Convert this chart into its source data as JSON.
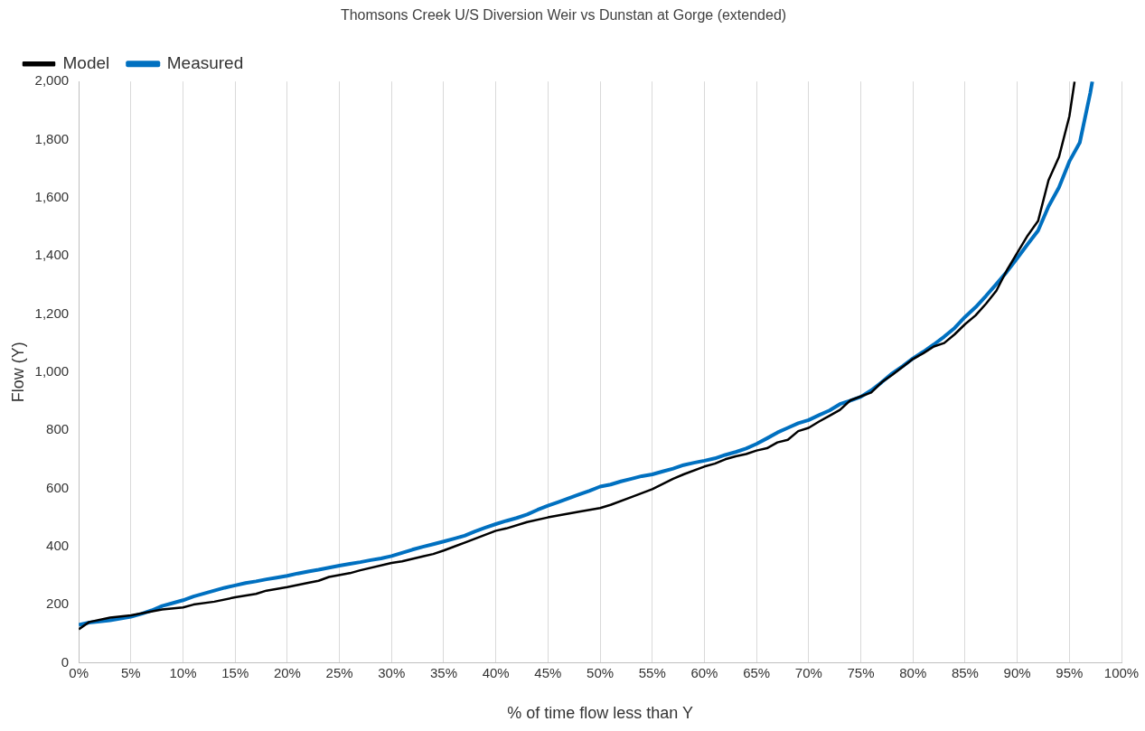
{
  "chart_data": {
    "type": "line",
    "title": "Thomsons Creek U/S Diversion Weir vs Dunstan at Gorge (extended)",
    "xlabel": "% of time flow less than Y",
    "ylabel": "Flow (Y)",
    "xlim": [
      0,
      100
    ],
    "xticks": [
      {
        "value": 0,
        "label": "0%"
      },
      {
        "value": 5,
        "label": "5%"
      },
      {
        "value": 10,
        "label": "10%"
      },
      {
        "value": 15,
        "label": "15%"
      },
      {
        "value": 20,
        "label": "20%"
      },
      {
        "value": 25,
        "label": "25%"
      },
      {
        "value": 30,
        "label": "30%"
      },
      {
        "value": 35,
        "label": "35%"
      },
      {
        "value": 40,
        "label": "40%"
      },
      {
        "value": 45,
        "label": "45%"
      },
      {
        "value": 50,
        "label": "50%"
      },
      {
        "value": 55,
        "label": "55%"
      },
      {
        "value": 60,
        "label": "60%"
      },
      {
        "value": 65,
        "label": "65%"
      },
      {
        "value": 70,
        "label": "70%"
      },
      {
        "value": 75,
        "label": "75%"
      },
      {
        "value": 80,
        "label": "80%"
      },
      {
        "value": 85,
        "label": "85%"
      },
      {
        "value": 90,
        "label": "90%"
      },
      {
        "value": 95,
        "label": "95%"
      },
      {
        "value": 100,
        "label": "100%"
      }
    ],
    "ylim": [
      0,
      2000
    ],
    "yticks": [
      0,
      {
        "value": 200,
        "label": "200"
      },
      {
        "value": 400,
        "label": "400"
      },
      {
        "value": 600,
        "label": "600"
      },
      {
        "value": 800,
        "label": "800"
      },
      {
        "value": 1000,
        "label": "1,000"
      },
      {
        "value": 1200,
        "label": "1,200"
      },
      {
        "value": 1400,
        "label": "1,400"
      },
      {
        "value": 1600,
        "label": "1,600"
      },
      {
        "value": 1800,
        "label": "1,800"
      },
      {
        "value": 2000,
        "label": "2,000"
      }
    ],
    "grid": "x",
    "legend": "top left",
    "marker": "none",
    "line_style": "solid",
    "series": [
      {
        "name": "Measured",
        "color": "#0070c0",
        "x": [
          0,
          1,
          2,
          3,
          4,
          5,
          6,
          7,
          8,
          9,
          10,
          11,
          12,
          13,
          14,
          15,
          16,
          17,
          18,
          19,
          20,
          21,
          22,
          23,
          24,
          25,
          26,
          27,
          28,
          29,
          30,
          31,
          32,
          33,
          34,
          35,
          36,
          37,
          38,
          39,
          40,
          41,
          42,
          43,
          44,
          45,
          46,
          47,
          48,
          49,
          50,
          51,
          52,
          53,
          54,
          55,
          56,
          57,
          58,
          59,
          60,
          61,
          62,
          63,
          64,
          65,
          66,
          67,
          68,
          69,
          70,
          71,
          72,
          73,
          74,
          75,
          76,
          77,
          78,
          79,
          80,
          81,
          82,
          83,
          84,
          85,
          86,
          87,
          88,
          89,
          90,
          91,
          92,
          93,
          94,
          95,
          96,
          97,
          97.2
        ],
        "values": [
          130,
          138,
          142,
          146,
          152,
          158,
          168,
          180,
          195,
          205,
          215,
          228,
          238,
          248,
          258,
          266,
          274,
          280,
          287,
          293,
          299,
          307,
          314,
          320,
          327,
          334,
          340,
          346,
          353,
          359,
          367,
          378,
          389,
          399,
          408,
          417,
          427,
          437,
          452,
          465,
          477,
          488,
          498,
          510,
          526,
          540,
          553,
          566,
          579,
          592,
          606,
          613,
          624,
          633,
          642,
          648,
          658,
          668,
          680,
          688,
          695,
          703,
          715,
          725,
          737,
          753,
          772,
          792,
          808,
          824,
          835,
          852,
          868,
          890,
          902,
          915,
          937,
          965,
          995,
          1020,
          1047,
          1070,
          1095,
          1122,
          1152,
          1190,
          1223,
          1262,
          1303,
          1345,
          1392,
          1440,
          1487,
          1570,
          1635,
          1725,
          1790,
          1960,
          2000
        ]
      },
      {
        "name": "Model",
        "color": "#000000",
        "x": [
          0,
          1,
          3,
          5,
          8,
          10,
          11,
          13,
          15,
          17,
          18,
          20,
          22,
          23,
          24,
          26,
          27,
          30,
          31,
          33,
          34,
          35,
          37,
          40,
          41,
          43,
          45,
          48,
          50,
          51,
          53,
          55,
          57,
          58,
          60,
          61,
          62,
          63,
          64,
          65,
          66,
          67,
          68,
          69,
          70,
          71,
          72,
          73,
          74,
          76,
          77,
          78,
          80,
          81,
          82,
          83,
          84,
          85,
          86,
          87,
          88,
          89,
          90,
          91,
          92,
          93,
          94,
          95,
          95.5
        ],
        "values": [
          115,
          140,
          155,
          163,
          183,
          190,
          200,
          210,
          225,
          237,
          248,
          260,
          275,
          282,
          295,
          308,
          318,
          343,
          349,
          366,
          374,
          386,
          413,
          454,
          462,
          484,
          500,
          520,
          532,
          543,
          570,
          597,
          633,
          648,
          675,
          685,
          700,
          710,
          718,
          730,
          738,
          758,
          767,
          797,
          808,
          830,
          850,
          870,
          903,
          930,
          965,
          990,
          1045,
          1065,
          1088,
          1100,
          1130,
          1165,
          1195,
          1235,
          1280,
          1350,
          1410,
          1470,
          1520,
          1660,
          1740,
          1880,
          2000
        ]
      }
    ]
  }
}
